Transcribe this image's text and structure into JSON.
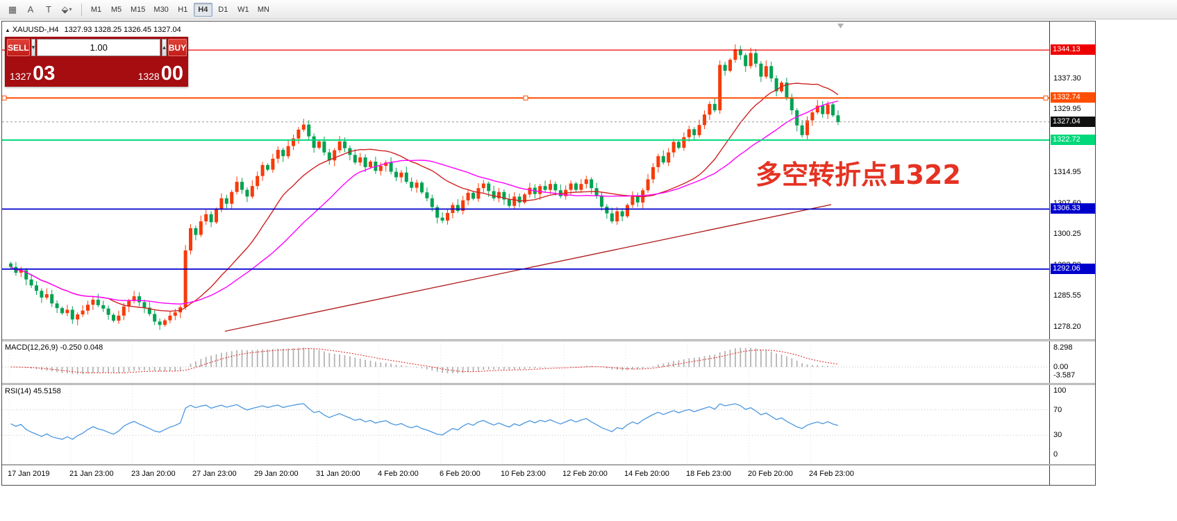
{
  "toolbar": {
    "tools": [
      {
        "name": "grid-icon",
        "glyph": "▦",
        "caret": ""
      },
      {
        "name": "text-label-icon",
        "glyph": "A",
        "caret": ""
      },
      {
        "name": "text-tool-icon",
        "glyph": "T",
        "caret": ""
      },
      {
        "name": "shapes-dropdown-icon",
        "glyph": "⬙",
        "caret": "▾"
      }
    ],
    "timeframes": [
      {
        "label": "M1"
      },
      {
        "label": "M5"
      },
      {
        "label": "M15"
      },
      {
        "label": "M30"
      },
      {
        "label": "H1"
      },
      {
        "label": "H4",
        "active": true
      },
      {
        "label": "D1"
      },
      {
        "label": "W1"
      },
      {
        "label": "MN"
      }
    ]
  },
  "chart": {
    "header": {
      "expand_icon": "▲",
      "symbol": "XAUUSD-,H4",
      "ohlc": "1327.93 1328.25 1326.45 1327.04"
    },
    "annotation": {
      "text": "多空转折点1322",
      "color": "#e53222"
    },
    "current_price": 1327.04,
    "axis_labels": [
      "1337.30",
      "1329.95",
      "1322.60",
      "1314.95",
      "1307.60",
      "1300.25",
      "1292.90",
      "1285.55",
      "1278.20"
    ],
    "badges": [
      {
        "text": "1344.13",
        "price": 1344.13,
        "bg": "#ee0000",
        "color": "#ffffff"
      },
      {
        "text": "1332.74",
        "price": 1332.74,
        "bg": "#ff4e00",
        "color": "#ffffff"
      },
      {
        "text": "1327.04",
        "price": 1327.04,
        "bg": "#101010",
        "color": "#ffffff"
      },
      {
        "text": "1322.72",
        "price": 1322.72,
        "bg": "#00d87a",
        "color": "#ffffff"
      },
      {
        "text": "1306.33",
        "price": 1306.33,
        "bg": "#0000cd",
        "color": "#ffffff"
      },
      {
        "text": "1292.06",
        "price": 1292.06,
        "bg": "#0000cd",
        "color": "#ffffff"
      }
    ],
    "hlines": [
      {
        "price": 1344.13,
        "color": "#ee0000",
        "width": 1.3,
        "handles": false
      },
      {
        "price": 1332.74,
        "color": "#ff4e00",
        "width": 2,
        "handles": true
      },
      {
        "price": 1322.72,
        "color": "#00d87a",
        "width": 2,
        "handles": false
      },
      {
        "price": 1306.33,
        "color": "#0000cd",
        "width": 1.8,
        "handles": false
      },
      {
        "price": 1292.06,
        "color": "#0000cd",
        "width": 1.8,
        "handles": false
      }
    ],
    "trendline": {
      "i1": 42,
      "p1": 1277.3,
      "i2": 160,
      "p2": 1307.4,
      "color": "#b22222"
    }
  },
  "trade_panel": {
    "sell_label": "SELL",
    "buy_label": "BUY",
    "volume": "1.00",
    "sell_price": {
      "main": "1327",
      "pips": "03"
    },
    "buy_price": {
      "main": "1328",
      "pips": "00"
    },
    "spin_down": "▾",
    "spin_up": "▴"
  },
  "indicators": {
    "macd": {
      "label": "MACD(12,26,9) -0.250 0.048",
      "axis": [
        8.298,
        0.0,
        -3.587
      ],
      "histogram_color": "#b4b4b4",
      "signal_color": "#e02020"
    },
    "rsi": {
      "label": "RSI(14) 45.5158",
      "axis": [
        100,
        70,
        30,
        0
      ],
      "levels": [
        70,
        30
      ],
      "line_color": "#4a97e0"
    }
  },
  "chart_data": {
    "type": "candlestick",
    "symbol": "XAUUSD",
    "timeframe": "H4",
    "title": "XAUUSD-,H4",
    "first_open": 1293.4,
    "price_axis": {
      "min": 1275.4,
      "max": 1350.9
    },
    "up_color": "#f73b0a",
    "down_color": "#00a251",
    "closes": [
      1292.6,
      1291.2,
      1291.8,
      1289.6,
      1288.2,
      1286.9,
      1285.3,
      1286.1,
      1283.9,
      1282.8,
      1281.6,
      1282.4,
      1280.1,
      1281.3,
      1282.2,
      1283.6,
      1284.8,
      1283.5,
      1282.7,
      1281.2,
      1279.8,
      1281.0,
      1283.2,
      1284.5,
      1285.6,
      1284.2,
      1282.9,
      1281.4,
      1279.6,
      1278.8,
      1279.9,
      1281.0,
      1281.8,
      1283.0,
      1296.5,
      1301.8,
      1300.2,
      1303.4,
      1305.1,
      1303.2,
      1306.3,
      1308.9,
      1307.6,
      1310.4,
      1312.8,
      1310.9,
      1309.3,
      1311.8,
      1314.2,
      1316.8,
      1315.7,
      1318.3,
      1320.4,
      1318.9,
      1321.3,
      1323.1,
      1325.2,
      1326.4,
      1323.6,
      1320.9,
      1322.4,
      1319.8,
      1317.9,
      1320.3,
      1322.4,
      1320.8,
      1319.2,
      1317.4,
      1318.6,
      1316.3,
      1317.6,
      1315.4,
      1316.6,
      1317.4,
      1315.2,
      1313.9,
      1315.0,
      1312.8,
      1311.4,
      1312.6,
      1310.3,
      1308.9,
      1306.8,
      1304.3,
      1303.6,
      1305.4,
      1307.3,
      1305.9,
      1308.4,
      1310.2,
      1308.8,
      1311.3,
      1312.4,
      1310.6,
      1308.9,
      1310.4,
      1308.6,
      1307.1,
      1309.3,
      1307.9,
      1309.8,
      1311.4,
      1309.9,
      1311.8,
      1310.9,
      1312.3,
      1310.8,
      1309.4,
      1310.9,
      1312.4,
      1310.9,
      1312.3,
      1313.4,
      1311.3,
      1309.4,
      1306.9,
      1305.3,
      1303.4,
      1305.8,
      1304.6,
      1307.3,
      1309.4,
      1307.9,
      1310.8,
      1313.4,
      1316.3,
      1318.9,
      1317.4,
      1319.8,
      1322.3,
      1320.9,
      1323.4,
      1325.3,
      1323.9,
      1326.3,
      1328.8,
      1331.3,
      1329.8,
      1340.6,
      1339.2,
      1341.8,
      1344.3,
      1342.9,
      1340.3,
      1343.4,
      1340.9,
      1337.8,
      1340.3,
      1337.4,
      1334.3,
      1336.4,
      1332.9,
      1329.8,
      1326.2,
      1323.9,
      1327.4,
      1329.3,
      1330.9,
      1328.9,
      1331.2,
      1328.6,
      1327.0
    ],
    "ma": [
      {
        "period": 20,
        "color": "#d02020"
      },
      {
        "period": 34,
        "color": "#ff00ff"
      }
    ],
    "x_labels": [
      {
        "i": 0,
        "text": "17 Jan 2019"
      },
      {
        "i": 12,
        "text": "21 Jan 23:00"
      },
      {
        "i": 24,
        "text": "23 Jan 20:00"
      },
      {
        "i": 36,
        "text": "27 Jan 23:00"
      },
      {
        "i": 48,
        "text": "29 Jan 20:00"
      },
      {
        "i": 60,
        "text": "31 Jan 20:00"
      },
      {
        "i": 72,
        "text": "4 Feb 20:00"
      },
      {
        "i": 84,
        "text": "6 Feb 20:00"
      },
      {
        "i": 96,
        "text": "10 Feb 23:00"
      },
      {
        "i": 108,
        "text": "12 Feb 20:00"
      },
      {
        "i": 120,
        "text": "14 Feb 20:00"
      },
      {
        "i": 132,
        "text": "18 Feb 23:00"
      },
      {
        "i": 144,
        "text": "20 Feb 20:00"
      },
      {
        "i": 156,
        "text": "24 Feb 23:00"
      }
    ]
  }
}
